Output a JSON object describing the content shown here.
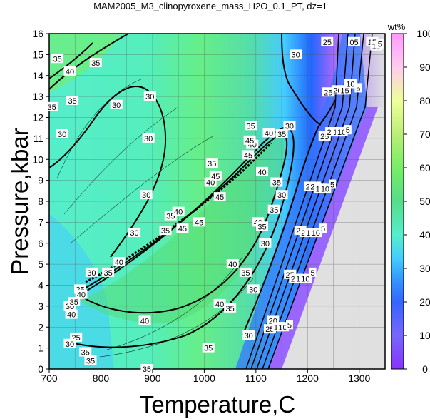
{
  "chart_data": {
    "type": "heatmap",
    "title": "MAM2005_M3_clinopyroxene_mass_H2O_0.1_PT, dz=1",
    "xlabel": "Temperature,C",
    "ylabel": "Pressure,kbar",
    "xlim": [
      700,
      1350
    ],
    "ylim": [
      0,
      16
    ],
    "x_ticks": [
      "700",
      "800",
      "900",
      "1000",
      "1100",
      "1200",
      "1300"
    ],
    "y_ticks": [
      "0",
      "1",
      "2",
      "3",
      "4",
      "5",
      "6",
      "7",
      "8",
      "9",
      "10",
      "11",
      "12",
      "13",
      "14",
      "15",
      "16"
    ],
    "grid": true,
    "colorbar": {
      "label": "wt%",
      "range": [
        0,
        100
      ],
      "ticks": [
        "0",
        "10",
        "20",
        "30",
        "40",
        "50",
        "60",
        "70",
        "80",
        "90",
        "100"
      ],
      "colors": [
        "#ffffff",
        "#ff99ff",
        "#cc66ff",
        "#8866ff",
        "#2244ff",
        "#3399ff",
        "#44ccff",
        "#55eecc",
        "#55dd88",
        "#77ee66",
        "#eeff88"
      ]
    },
    "no_data_color": "#e0e0e0",
    "contour_levels_labeled": [
      5,
      10,
      15,
      20,
      25,
      30,
      35,
      40,
      45
    ],
    "contour_labels": [
      {
        "t": 716,
        "p": 14.8,
        "v": "35"
      },
      {
        "t": 740,
        "p": 14.2,
        "v": "40"
      },
      {
        "t": 790,
        "p": 14.6,
        "v": "35"
      },
      {
        "t": 705,
        "p": 12.5,
        "v": "35"
      },
      {
        "t": 745,
        "p": 12.8,
        "v": "35"
      },
      {
        "t": 830,
        "p": 12.6,
        "v": "30"
      },
      {
        "t": 895,
        "p": 13.0,
        "v": "30"
      },
      {
        "t": 725,
        "p": 11.2,
        "v": "30"
      },
      {
        "t": 892,
        "p": 11.0,
        "v": "30"
      },
      {
        "t": 888,
        "p": 8.3,
        "v": "30"
      },
      {
        "t": 865,
        "p": 6.5,
        "v": "30"
      },
      {
        "t": 782,
        "p": 4.6,
        "v": "30"
      },
      {
        "t": 760,
        "p": 3.8,
        "v": "25"
      },
      {
        "t": 762,
        "p": 3.55,
        "v": "40"
      },
      {
        "t": 814,
        "p": 4.6,
        "v": "35"
      },
      {
        "t": 835,
        "p": 5.1,
        "v": "40"
      },
      {
        "t": 925,
        "p": 6.6,
        "v": "35"
      },
      {
        "t": 935,
        "p": 7.3,
        "v": "35"
      },
      {
        "t": 950,
        "p": 7.5,
        "v": "40"
      },
      {
        "t": 958,
        "p": 6.7,
        "v": "45"
      },
      {
        "t": 990,
        "p": 7.0,
        "v": "45"
      },
      {
        "t": 1030,
        "p": 8.2,
        "v": "45"
      },
      {
        "t": 1012,
        "p": 8.9,
        "v": "40"
      },
      {
        "t": 1022,
        "p": 9.2,
        "v": "45"
      },
      {
        "t": 1015,
        "p": 9.8,
        "v": "35"
      },
      {
        "t": 1093,
        "p": 10.7,
        "v": "40"
      },
      {
        "t": 1088,
        "p": 10.9,
        "v": "45"
      },
      {
        "t": 1085,
        "p": 10.2,
        "v": "45"
      },
      {
        "t": 1090,
        "p": 11.6,
        "v": "35"
      },
      {
        "t": 1125,
        "p": 11.25,
        "v": "40"
      },
      {
        "t": 1150,
        "p": 11.2,
        "v": "35"
      },
      {
        "t": 1165,
        "p": 11.6,
        "v": "30"
      },
      {
        "t": 1112,
        "p": 9.4,
        "v": "40"
      },
      {
        "t": 1104,
        "p": 7.0,
        "v": "40"
      },
      {
        "t": 1112,
        "p": 6.8,
        "v": "35"
      },
      {
        "t": 1140,
        "p": 8.9,
        "v": "35"
      },
      {
        "t": 1135,
        "p": 7.6,
        "v": "35"
      },
      {
        "t": 1150,
        "p": 8.3,
        "v": "30"
      },
      {
        "t": 1118,
        "p": 6.0,
        "v": "30"
      },
      {
        "t": 1055,
        "p": 5.0,
        "v": "40"
      },
      {
        "t": 1080,
        "p": 4.6,
        "v": "35"
      },
      {
        "t": 1095,
        "p": 3.8,
        "v": "30"
      },
      {
        "t": 1127,
        "p": 1.9,
        "v": "25"
      },
      {
        "t": 1133,
        "p": 2.3,
        "v": "20"
      },
      {
        "t": 1143,
        "p": 2.0,
        "v": "15"
      },
      {
        "t": 1152,
        "p": 2.0,
        "v": "10"
      },
      {
        "t": 1165,
        "p": 2.1,
        "v": "5"
      },
      {
        "t": 1086,
        "p": 1.6,
        "v": "30"
      },
      {
        "t": 1050,
        "p": 2.9,
        "v": "35"
      },
      {
        "t": 1030,
        "p": 3.1,
        "v": "40"
      },
      {
        "t": 1008,
        "p": 1.0,
        "v": "35"
      },
      {
        "t": 885,
        "p": 2.3,
        "v": "40"
      },
      {
        "t": 743,
        "p": 2.6,
        "v": "40"
      },
      {
        "t": 740,
        "p": 3.0,
        "v": "30"
      },
      {
        "t": 748,
        "p": 3.2,
        "v": "35"
      },
      {
        "t": 752,
        "p": 1.5,
        "v": "25"
      },
      {
        "t": 740,
        "p": 1.2,
        "v": "30"
      },
      {
        "t": 770,
        "p": 0.8,
        "v": "35"
      },
      {
        "t": 780,
        "p": 0.4,
        "v": "35"
      },
      {
        "t": 889,
        "p": 0.0,
        "v": "35"
      },
      {
        "t": 1166,
        "p": 4.5,
        "v": "25"
      },
      {
        "t": 1176,
        "p": 4.3,
        "v": "20"
      },
      {
        "t": 1186,
        "p": 4.3,
        "v": "15"
      },
      {
        "t": 1196,
        "p": 4.3,
        "v": "10"
      },
      {
        "t": 1210,
        "p": 4.6,
        "v": "5"
      },
      {
        "t": 1186,
        "p": 6.6,
        "v": "25"
      },
      {
        "t": 1196,
        "p": 6.5,
        "v": "20"
      },
      {
        "t": 1206,
        "p": 6.5,
        "v": "15"
      },
      {
        "t": 1216,
        "p": 6.5,
        "v": "10"
      },
      {
        "t": 1230,
        "p": 6.7,
        "v": "5"
      },
      {
        "t": 1205,
        "p": 8.7,
        "v": "25"
      },
      {
        "t": 1214,
        "p": 8.7,
        "v": "20"
      },
      {
        "t": 1224,
        "p": 8.6,
        "v": "15"
      },
      {
        "t": 1234,
        "p": 8.6,
        "v": "10"
      },
      {
        "t": 1248,
        "p": 8.8,
        "v": "5"
      },
      {
        "t": 1233,
        "p": 11.1,
        "v": "25"
      },
      {
        "t": 1246,
        "p": 11.3,
        "v": "20"
      },
      {
        "t": 1258,
        "p": 11.3,
        "v": "15"
      },
      {
        "t": 1266,
        "p": 11.3,
        "v": "10"
      },
      {
        "t": 1278,
        "p": 11.4,
        "v": "5"
      },
      {
        "t": 1240,
        "p": 13.2,
        "v": "25"
      },
      {
        "t": 1258,
        "p": 13.3,
        "v": "20"
      },
      {
        "t": 1272,
        "p": 13.3,
        "v": "15"
      },
      {
        "t": 1283,
        "p": 13.6,
        "v": "10"
      },
      {
        "t": 1298,
        "p": 13.4,
        "v": "5"
      },
      {
        "t": 1238,
        "p": 15.6,
        "v": "25"
      },
      {
        "t": 1290,
        "p": 15.6,
        "v": "05"
      },
      {
        "t": 1325,
        "p": 15.6,
        "v": "15"
      },
      {
        "t": 1333,
        "p": 15.4,
        "v": "10"
      },
      {
        "t": 1340,
        "p": 15.5,
        "v": "5"
      },
      {
        "t": 1177,
        "p": 15.0,
        "v": "30"
      }
    ]
  }
}
